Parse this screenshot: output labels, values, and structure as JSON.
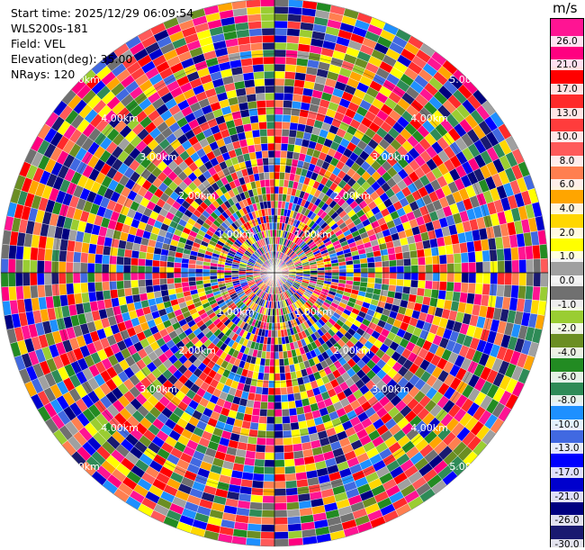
{
  "info": {
    "start_time": "Start time: 2025/12/29 06:09:54",
    "instrument": "WLS200s-181",
    "field": "Field: VEL",
    "elevation": "Elevation(deg): 35.00",
    "nrays": "NRays: 120"
  },
  "chart_data": {
    "type": "heatmap",
    "projection": "polar PPI",
    "field": "VEL",
    "unit": "m/s",
    "nrays": 120,
    "elevation_deg": 35.0,
    "range_ring_labels": [
      "1.00km",
      "2.00km",
      "3.00km",
      "4.00km",
      "5.00km"
    ],
    "colorbar": {
      "min": -30.0,
      "max": 30.0,
      "tick_labels": [
        "26.0",
        "21.0",
        "17.0",
        "13.0",
        "10.0",
        "8.0",
        "6.0",
        "4.0",
        "2.0",
        "1.0",
        "0.0",
        "-1.0",
        "-2.0",
        "-4.0",
        "-6.0",
        "-8.0",
        "-10.0",
        "-13.0",
        "-17.0",
        "-21.0",
        "-26.0",
        "-30.0"
      ],
      "colors": [
        "#ff1493",
        "#ff0080",
        "#ff0000",
        "#ff2a2a",
        "#ff3c3c",
        "#ff5a5a",
        "#ff7f50",
        "#ffa500",
        "#ffd700",
        "#ffff00",
        "#a0a0a0",
        "#707070",
        "#9acd32",
        "#6b8e23",
        "#228b22",
        "#2e8b57",
        "#1e90ff",
        "#4169e1",
        "#0000ff",
        "#0000cd",
        "#000080",
        "#191970"
      ]
    }
  }
}
